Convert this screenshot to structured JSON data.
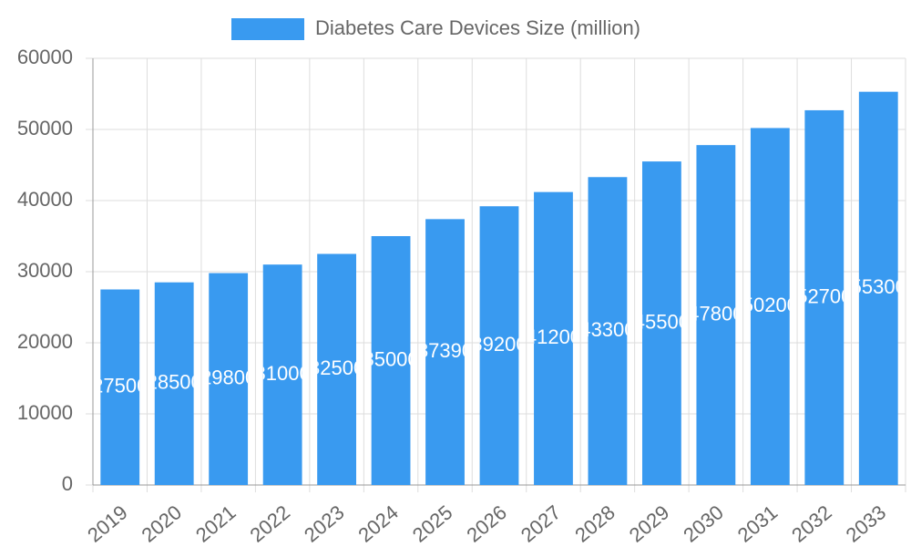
{
  "chart_data": {
    "type": "bar",
    "legend": "Diabetes Care Devices Size (million)",
    "categories": [
      "2019",
      "2020",
      "2021",
      "2022",
      "2023",
      "2024",
      "2025",
      "2026",
      "2027",
      "2028",
      "2029",
      "2030",
      "2031",
      "2032",
      "2033"
    ],
    "values": [
      27500,
      28500,
      29800,
      31000,
      32500,
      35000,
      37390,
      39200,
      41200,
      43300,
      45500,
      47800,
      50200,
      52700,
      55300
    ],
    "color": "#399af0",
    "ylim": [
      0,
      60000
    ],
    "yticks": [
      0,
      10000,
      20000,
      30000,
      40000,
      50000,
      60000
    ],
    "grid": true
  }
}
